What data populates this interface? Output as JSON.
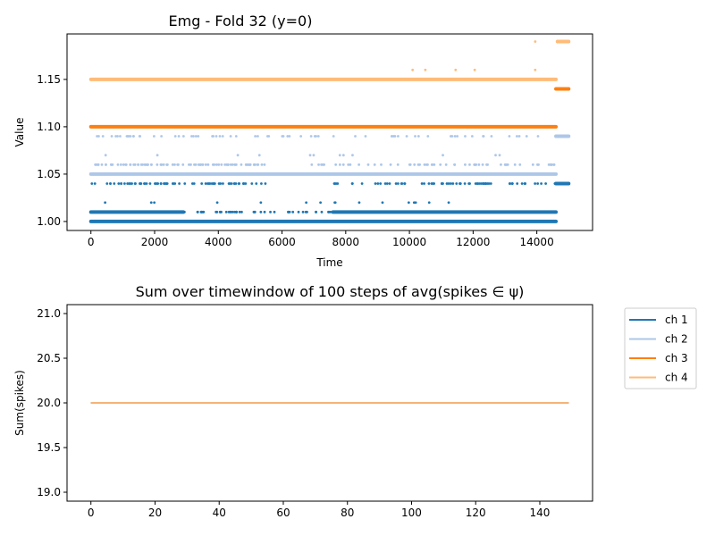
{
  "chart_data": [
    {
      "type": "scatter",
      "title": "Emg - Fold 32 (y=0)",
      "xlabel": "Time",
      "ylabel": "Value",
      "xlim": [
        -750,
        15750
      ],
      "ylim": [
        0.9905,
        1.198
      ],
      "xticks": [
        0,
        2000,
        4000,
        6000,
        8000,
        10000,
        12000,
        14000
      ],
      "xtick_labels": [
        "0",
        "2000",
        "4000",
        "6000",
        "8000",
        "10000",
        "12000",
        "14000"
      ],
      "yticks": [
        1.0,
        1.05,
        1.1,
        1.15
      ],
      "ytick_labels": [
        "1.00",
        "1.05",
        "1.10",
        "1.15"
      ],
      "grid": false,
      "series": [
        {
          "color": "#1f77b4",
          "dense": [
            {
              "x": [
                0,
                14600
              ],
              "y": 1.0
            },
            {
              "x": [
                0,
                2900
              ],
              "y": 1.01
            },
            {
              "x": [
                7600,
                14600
              ],
              "y": 1.01
            },
            {
              "x": [
                14600,
                15000
              ],
              "y": 1.04
            }
          ],
          "sparse": [
            {
              "x": [
                0,
                5500
              ],
              "y": 1.04,
              "n": 70
            },
            {
              "x": [
                7600,
                14600
              ],
              "y": 1.04,
              "n": 70
            },
            {
              "x": [
                2900,
                7600
              ],
              "y": 1.01,
              "n": 45
            },
            {
              "x": [
                0,
                14600
              ],
              "y": 1.02,
              "n": 16
            }
          ]
        },
        {
          "color": "#aec7e8",
          "dense": [
            {
              "x": [
                0,
                14600
              ],
              "y": 1.05
            },
            {
              "x": [
                14600,
                15000
              ],
              "y": 1.09
            }
          ],
          "sparse": [
            {
              "x": [
                0,
                5500
              ],
              "y": 1.06,
              "n": 85
            },
            {
              "x": [
                6900,
                14600
              ],
              "y": 1.06,
              "n": 60
            },
            {
              "x": [
                0,
                14600
              ],
              "y": 1.09,
              "n": 70
            },
            {
              "x": [
                0,
                14600
              ],
              "y": 1.07,
              "n": 12
            }
          ]
        },
        {
          "color": "#ff7f0e",
          "dense": [
            {
              "x": [
                0,
                14600
              ],
              "y": 1.1
            },
            {
              "x": [
                14600,
                15000
              ],
              "y": 1.14
            }
          ],
          "sparse": []
        },
        {
          "color": "#ffbb78",
          "dense": [
            {
              "x": [
                0,
                14600
              ],
              "y": 1.15
            },
            {
              "x": [
                14650,
                15000
              ],
              "y": 1.19
            }
          ],
          "sparse": [
            {
              "points": [
                [
                  10100,
                  1.16
                ],
                [
                  10500,
                  1.16
                ],
                [
                  11450,
                  1.16
                ],
                [
                  12050,
                  1.16
                ],
                [
                  13950,
                  1.16
                ],
                [
                  13950,
                  1.19
                ]
              ]
            }
          ]
        }
      ]
    },
    {
      "type": "line",
      "title": "Sum over timewindow of 100 steps of avg(spikes $\\in\\psi$)",
      "title_text": "Sum over timewindow of 100 steps of avg(spikes ∈ ψ)",
      "xlabel": "",
      "ylabel": "Sum(spikes)",
      "xlim": [
        -7.45,
        156.45
      ],
      "ylim": [
        18.9,
        21.1
      ],
      "xticks": [
        0,
        20,
        40,
        60,
        80,
        100,
        120,
        140
      ],
      "xtick_labels": [
        "0",
        "20",
        "40",
        "60",
        "80",
        "100",
        "120",
        "140"
      ],
      "yticks": [
        19.0,
        19.5,
        20.0,
        20.5,
        21.0
      ],
      "ytick_labels": [
        "19.0",
        "19.5",
        "20.0",
        "20.5",
        "21.0"
      ],
      "grid": false,
      "legend_position": "outside-right-top",
      "series": [
        {
          "name": "ch 1",
          "color": "#1f77b4",
          "x": [
            0,
            149
          ],
          "y": [
            20,
            20
          ]
        },
        {
          "name": "ch 2",
          "color": "#aec7e8",
          "x": [
            0,
            149
          ],
          "y": [
            20,
            20
          ]
        },
        {
          "name": "ch 3",
          "color": "#ff7f0e",
          "x": [
            0,
            149
          ],
          "y": [
            20,
            20
          ]
        },
        {
          "name": "ch 4",
          "color": "#ffbb78",
          "x": [
            0,
            149
          ],
          "y": [
            20,
            20
          ]
        }
      ]
    }
  ]
}
